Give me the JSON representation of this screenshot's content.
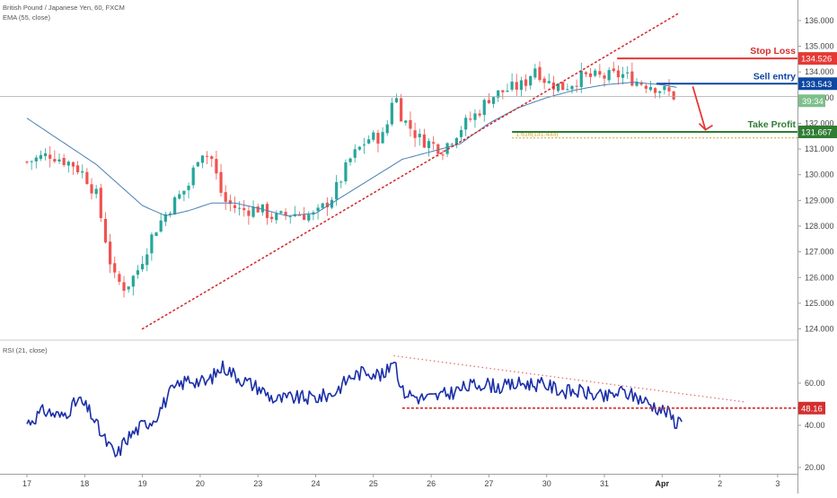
{
  "header": {
    "symbol_line": "British Pound / Japanese Yen, 60, FXCM",
    "ema_line": "EMA (55, close)",
    "rsi_line": "RSI (21, close)"
  },
  "chart_data": [
    {
      "type": "candlestick",
      "symbol": "British Pound / Japanese Yen",
      "interval": "60",
      "source": "FXCM",
      "ylim": [
        123.6,
        136.8
      ],
      "y_ticks": [
        124,
        125,
        126,
        127,
        128,
        129,
        130,
        131,
        132,
        133,
        134,
        135,
        136
      ],
      "y_tick_labels": [
        "124.000",
        "125.000",
        "126.000",
        "127.000",
        "128.000",
        "129.000",
        "130.000",
        "131.000",
        "132.000",
        "133.000",
        "134.000",
        "135.000",
        "136.000"
      ],
      "x_tick_labels": [
        "17",
        "18",
        "19",
        "20",
        "23",
        "24",
        "25",
        "26",
        "27",
        "30",
        "31",
        "Apr",
        "2",
        "3"
      ],
      "x_tick_index": [
        0,
        1,
        2,
        3,
        4,
        5,
        6,
        7,
        8,
        9,
        10,
        11,
        12,
        13
      ],
      "ema_label": "EMA (55, close)",
      "ema_color": "#4a7fb5",
      "candle_up_color": "#26a69a",
      "candle_down_color": "#ef5350",
      "anchors": [
        [
          0.0,
          130.5
        ],
        [
          0.4,
          130.8
        ],
        [
          0.8,
          130.4
        ],
        [
          1.0,
          130.0
        ],
        [
          1.2,
          129.2
        ],
        [
          1.5,
          126.0
        ],
        [
          1.7,
          125.6
        ],
        [
          1.9,
          126.2
        ],
        [
          2.2,
          127.8
        ],
        [
          2.5,
          128.8
        ],
        [
          2.8,
          129.6
        ],
        [
          3.0,
          131.0
        ],
        [
          3.2,
          130.6
        ],
        [
          3.4,
          129.0
        ],
        [
          3.7,
          128.6
        ],
        [
          4.0,
          128.7
        ],
        [
          4.3,
          128.3
        ],
        [
          4.6,
          128.5
        ],
        [
          5.0,
          128.4
        ],
        [
          5.3,
          129.2
        ],
        [
          5.6,
          130.6
        ],
        [
          5.9,
          131.4
        ],
        [
          6.2,
          131.5
        ],
        [
          6.35,
          133.3
        ],
        [
          6.5,
          132.2
        ],
        [
          6.8,
          131.4
        ],
        [
          7.0,
          131.2
        ],
        [
          7.2,
          131.0
        ],
        [
          7.5,
          131.8
        ],
        [
          7.8,
          132.4
        ],
        [
          8.0,
          133.0
        ],
        [
          8.3,
          133.3
        ],
        [
          8.6,
          133.5
        ],
        [
          8.8,
          134.2
        ],
        [
          9.0,
          133.6
        ],
        [
          9.3,
          133.4
        ],
        [
          9.6,
          133.8
        ],
        [
          10.0,
          133.8
        ],
        [
          10.3,
          133.9
        ],
        [
          10.6,
          133.6
        ],
        [
          10.8,
          133.5
        ],
        [
          11.1,
          133.2
        ],
        [
          11.25,
          133.0
        ]
      ],
      "ema_anchors": [
        [
          0.0,
          132.2
        ],
        [
          0.6,
          131.3
        ],
        [
          1.2,
          130.4
        ],
        [
          1.6,
          129.6
        ],
        [
          2.0,
          128.8
        ],
        [
          2.4,
          128.4
        ],
        [
          2.8,
          128.6
        ],
        [
          3.2,
          128.9
        ],
        [
          3.6,
          128.9
        ],
        [
          4.0,
          128.7
        ],
        [
          4.5,
          128.4
        ],
        [
          5.0,
          128.5
        ],
        [
          5.5,
          129.2
        ],
        [
          6.0,
          129.9
        ],
        [
          6.5,
          130.6
        ],
        [
          7.0,
          130.9
        ],
        [
          7.5,
          131.2
        ],
        [
          8.0,
          132.0
        ],
        [
          8.5,
          132.6
        ],
        [
          9.0,
          133.0
        ],
        [
          9.5,
          133.3
        ],
        [
          10.0,
          133.5
        ],
        [
          10.5,
          133.6
        ],
        [
          11.0,
          133.5
        ],
        [
          11.25,
          133.4
        ]
      ],
      "trendline": {
        "from": [
          2.0,
          124.0
        ],
        "to": [
          11.3,
          136.3
        ],
        "color": "#d32f2f"
      },
      "price_lines": [
        {
          "name": "stop-loss",
          "value": 134.526,
          "label": "Stop Loss",
          "tag": "134.526",
          "color": "#e53935",
          "text_color": "#d32f2f",
          "from_x": 10.22
        },
        {
          "name": "sell-entry",
          "value": 133.543,
          "label": "Sell entry",
          "tag": "133.543",
          "color": "#0d47a1",
          "text_color": "#0d47a1",
          "from_x": 10.9
        },
        {
          "name": "take-profit",
          "value": 131.667,
          "label": "Take Profit",
          "tag": "131.667",
          "color": "#2e7d32",
          "text_color": "#2e7d32",
          "from_x": 8.4
        }
      ],
      "fib": {
        "label": "1.618(131.433)",
        "value": 131.433,
        "from_x": 8.4,
        "color": "#c9a227"
      },
      "current_price_line": {
        "value": 133.05,
        "color": "#aaaaaa"
      },
      "countdown_tag": {
        "label": "39:34",
        "value": 132.88,
        "color": "#7dbf8a"
      },
      "arrow": {
        "from": [
          11.53,
          133.44
        ],
        "to": [
          11.75,
          131.75
        ],
        "color": "#e53935"
      }
    },
    {
      "type": "line",
      "name": "RSI (21, close)",
      "ylim": [
        17,
        80
      ],
      "y_ticks": [
        20,
        40,
        60
      ],
      "y_tick_labels": [
        "20.00",
        "40.00",
        "60.00"
      ],
      "line_color": "#1a2fa8",
      "anchors": [
        [
          0.0,
          41
        ],
        [
          0.3,
          47
        ],
        [
          0.6,
          44
        ],
        [
          0.9,
          52
        ],
        [
          1.1,
          46
        ],
        [
          1.3,
          35
        ],
        [
          1.55,
          25
        ],
        [
          1.7,
          33
        ],
        [
          2.0,
          40
        ],
        [
          2.2,
          43
        ],
        [
          2.5,
          56
        ],
        [
          2.8,
          62
        ],
        [
          3.1,
          60
        ],
        [
          3.4,
          68
        ],
        [
          3.7,
          62
        ],
        [
          4.0,
          58
        ],
        [
          4.3,
          52
        ],
        [
          4.6,
          53
        ],
        [
          5.0,
          53
        ],
        [
          5.3,
          55
        ],
        [
          5.6,
          63
        ],
        [
          5.9,
          66
        ],
        [
          6.2,
          63
        ],
        [
          6.35,
          73
        ],
        [
          6.5,
          56
        ],
        [
          6.8,
          53
        ],
        [
          7.0,
          53
        ],
        [
          7.3,
          55
        ],
        [
          7.6,
          58
        ],
        [
          7.9,
          60
        ],
        [
          8.2,
          58
        ],
        [
          8.6,
          60
        ],
        [
          9.0,
          59
        ],
        [
          9.3,
          56
        ],
        [
          9.6,
          56
        ],
        [
          10.0,
          53
        ],
        [
          10.3,
          56
        ],
        [
          10.6,
          53
        ],
        [
          10.8,
          50
        ],
        [
          11.1,
          46
        ],
        [
          11.25,
          41
        ],
        [
          11.35,
          45
        ]
      ],
      "trend_lines": [
        {
          "name": "rsi-resistance",
          "from": [
            6.35,
            73
          ],
          "to": [
            12.45,
            51
          ],
          "style": "dotted",
          "color": "#e57373"
        },
        {
          "name": "rsi-support",
          "from": [
            6.5,
            48.16
          ],
          "to": [
            13.35,
            48.16
          ],
          "style": "dashed",
          "color": "#d32f2f"
        }
      ],
      "value_tag": {
        "label": "48.16",
        "value": 48.16,
        "color": "#d32f2f"
      }
    }
  ]
}
